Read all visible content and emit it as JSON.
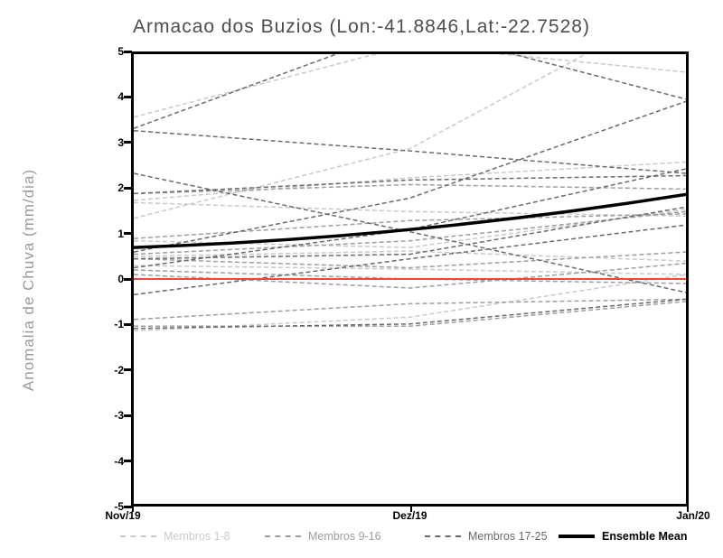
{
  "chart_data": {
    "type": "line",
    "title": "Armacao dos Buzios (Lon:-41.8846,Lat:-22.7528)",
    "ylabel": "Anomalia de Chuva (mm/dia)",
    "xlabel": "",
    "x_categories": [
      "Nov/19",
      "Dez/19",
      "Jan/20"
    ],
    "ylim": [
      -5,
      5
    ],
    "yticks": [
      5,
      4,
      3,
      2,
      1,
      0,
      -1,
      -2,
      -3,
      -4,
      -5
    ],
    "grid": "off",
    "legend_position": "bottom",
    "zero_line": {
      "value": 0,
      "color": "#f0463f"
    },
    "line_style_members": "dashed",
    "groups": [
      {
        "name": "Membros 1-8",
        "color": "#c9c9c9",
        "members": [
          [
            3.6,
            5.2,
            4.6
          ],
          [
            1.75,
            2.25,
            2.6
          ],
          [
            1.7,
            1.5,
            1.4
          ],
          [
            1.35,
            2.9,
            6.2
          ],
          [
            0.85,
            0.7,
            1.55
          ],
          [
            0.5,
            0.62,
            0.4
          ],
          [
            0.3,
            0.22,
            0.1
          ],
          [
            -1.15,
            -0.85,
            0.1
          ]
        ]
      },
      {
        "name": "Membros 9-16",
        "color": "#9e9e9e",
        "members": [
          [
            1.9,
            2.1,
            2.0
          ],
          [
            0.9,
            1.3,
            1.45
          ],
          [
            0.55,
            0.85,
            1.5
          ],
          [
            0.45,
            0.25,
            0.6
          ],
          [
            0.2,
            0.0,
            -0.1
          ],
          [
            0.1,
            -0.2,
            0.35
          ],
          [
            -0.9,
            -0.55,
            -0.45
          ],
          [
            -1.05,
            -1.05,
            -0.5
          ]
        ]
      },
      {
        "name": "Membros 17-25",
        "color": "#6a6a6a",
        "members": [
          [
            3.35,
            5.6,
            4.0
          ],
          [
            3.3,
            2.85,
            2.35
          ],
          [
            2.35,
            1.05,
            -0.3
          ],
          [
            1.9,
            2.2,
            2.3
          ],
          [
            0.6,
            1.8,
            3.95
          ],
          [
            0.45,
            0.55,
            1.6
          ],
          [
            0.25,
            1.1,
            2.45
          ],
          [
            -0.35,
            0.45,
            1.2
          ],
          [
            -1.1,
            -1.0,
            -0.45
          ]
        ]
      }
    ],
    "ensemble_mean": {
      "name": "Ensemble Mean",
      "color": "#000000",
      "values": [
        0.7,
        1.1,
        1.88
      ]
    }
  }
}
